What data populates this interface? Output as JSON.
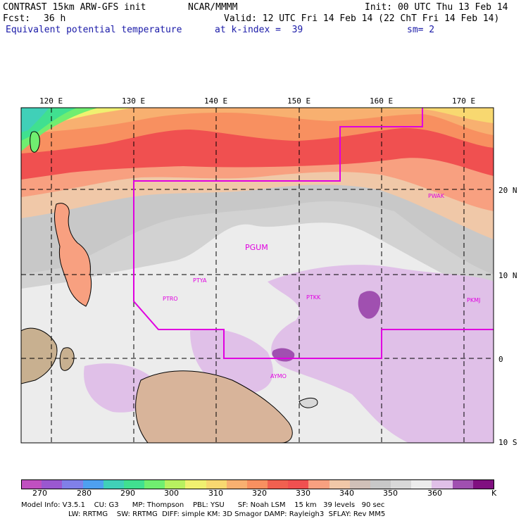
{
  "header": {
    "model": "CONTRAST 15km ARW-GFS init",
    "org": "NCAR/MMMM",
    "init": "Init: 00 UTC Thu 13 Feb 14",
    "fcst_label": "Fcst:",
    "fcst_value": "36 h",
    "valid": "Valid: 12 UTC Fri 14 Feb 14 (22 ChT Fri 14 Feb 14)",
    "field": "Equivalent potential temperature",
    "level": "at k-index =  39",
    "smooth": "sm= 2"
  },
  "axes": {
    "lon_labels": [
      "120 E",
      "130 E",
      "140 E",
      "150 E",
      "160 E",
      "170 E"
    ],
    "lat_labels": [
      "20 N",
      "10 N",
      "0",
      "10 S"
    ]
  },
  "stations": [
    "PWAK",
    "PGUM",
    "PTYA",
    "PTRO",
    "PTKK",
    "PKMJ",
    "AYMO"
  ],
  "colorbar": {
    "ticks": [
      "270",
      "280",
      "290",
      "300",
      "310",
      "320",
      "330",
      "340",
      "350",
      "360"
    ],
    "unit": "K",
    "colors": [
      "#c050c0",
      "#9a58d0",
      "#8080e8",
      "#4ea0f0",
      "#40d0b8",
      "#40e090",
      "#70ee70",
      "#b8f060",
      "#f0f070",
      "#f8d870",
      "#f8b070",
      "#f89060",
      "#f06050",
      "#f05050",
      "#f8a080",
      "#f0c8a8",
      "#d0c0b8",
      "#c8c8c8",
      "#d8d8d8",
      "#ececec",
      "#e0c0e8",
      "#a050b0",
      "#801080"
    ]
  },
  "footer": {
    "line1": "Model Info: V3.5.1    CU: G3      MP: Thompson    PBL: YSU      SF: Noah LSM    15 km   39 levels   90 sec",
    "line2": "LW: RRTMG    SW: RRTMG  DIFF: simple KM: 3D Smagor DAMP: Rayleigh3  SFLAY: Rev MM5"
  }
}
